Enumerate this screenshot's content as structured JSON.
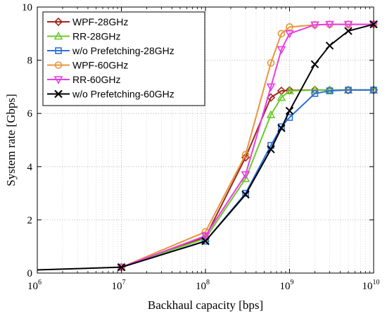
{
  "chart_data": {
    "type": "line",
    "title": "",
    "xlabel": "Backhaul capacity [bps]",
    "ylabel": "System rate [Gbps]",
    "xscale": "log",
    "xlim": [
      1000000,
      10000000000
    ],
    "ylim": [
      0,
      10
    ],
    "grid": true,
    "legend_position": "top-left",
    "x_ticks": [
      {
        "base": "10",
        "exp": "6"
      },
      {
        "base": "10",
        "exp": "7"
      },
      {
        "base": "10",
        "exp": "8"
      },
      {
        "base": "10",
        "exp": "9"
      },
      {
        "base": "10",
        "exp": "10"
      }
    ],
    "y_ticks": [
      "0",
      "2",
      "4",
      "6",
      "8",
      "10"
    ],
    "series": [
      {
        "name": "WPF-28GHz",
        "color": "#A0281E",
        "marker": "diamond",
        "x": [
          10000000,
          100000000,
          300000000,
          600000000,
          800000000,
          1000000000,
          2000000000,
          3000000000,
          5000000000,
          10000000000
        ],
        "y": [
          0.22,
          1.35,
          4.35,
          6.6,
          6.85,
          6.87,
          6.88,
          6.88,
          6.88,
          6.88
        ]
      },
      {
        "name": "RR-28GHz",
        "color": "#6CCB2C",
        "marker": "triangle-up",
        "x": [
          10000000,
          100000000,
          300000000,
          600000000,
          800000000,
          1000000000,
          2000000000,
          3000000000,
          5000000000,
          10000000000
        ],
        "y": [
          0.22,
          1.3,
          3.55,
          5.95,
          6.6,
          6.85,
          6.88,
          6.88,
          6.88,
          6.88
        ]
      },
      {
        "name": "w/o Prefetching-28GHz",
        "color": "#2F6FDB",
        "marker": "square",
        "x": [
          10000000,
          100000000,
          300000000,
          600000000,
          800000000,
          1000000000,
          2000000000,
          3000000000,
          5000000000,
          10000000000
        ],
        "y": [
          0.22,
          1.2,
          3.0,
          4.8,
          5.5,
          5.85,
          6.75,
          6.85,
          6.88,
          6.88
        ]
      },
      {
        "name": "WPF-60GHz",
        "color": "#E8963C",
        "marker": "circle",
        "x": [
          10000000,
          100000000,
          300000000,
          600000000,
          800000000,
          1000000000,
          2000000000,
          3000000000,
          5000000000,
          10000000000
        ],
        "y": [
          0.22,
          1.55,
          4.45,
          7.9,
          9.0,
          9.25,
          9.33,
          9.35,
          9.35,
          9.35
        ]
      },
      {
        "name": "RR-60GHz",
        "color": "#E83CE8",
        "marker": "triangle-down",
        "x": [
          10000000,
          100000000,
          300000000,
          600000000,
          800000000,
          1000000000,
          2000000000,
          3000000000,
          5000000000,
          10000000000
        ],
        "y": [
          0.22,
          1.4,
          3.7,
          7.0,
          8.4,
          9.0,
          9.33,
          9.35,
          9.35,
          9.35
        ]
      },
      {
        "name": "w/o Prefetching-60GHz",
        "color": "#000000",
        "marker": "x",
        "x": [
          1000000,
          10000000,
          100000000,
          300000000,
          600000000,
          800000000,
          1000000000,
          2000000000,
          3000000000,
          5000000000,
          10000000000
        ],
        "y": [
          0.12,
          0.22,
          1.2,
          2.95,
          4.65,
          5.45,
          6.1,
          7.85,
          8.55,
          9.1,
          9.35
        ]
      }
    ]
  }
}
